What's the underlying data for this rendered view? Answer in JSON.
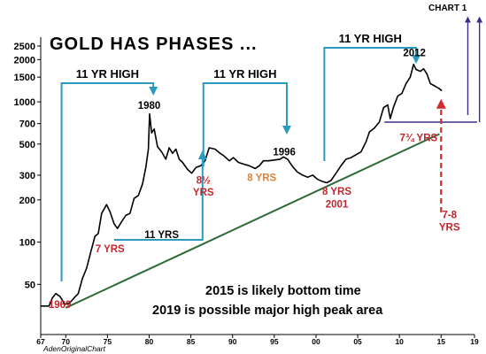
{
  "chart_label": "CHART 1",
  "source_label": "AdenOriginalChart",
  "chart_data": {
    "type": "line",
    "title": "GOLD HAS PHASES ...",
    "xlabel": "",
    "ylabel": "",
    "y_scale": "log",
    "xlim": [
      1967,
      2019
    ],
    "ylim": [
      32,
      2500
    ],
    "x_tick_labels": [
      "67",
      "70",
      "75",
      "80",
      "85",
      "90",
      "95",
      "00",
      "05",
      "10",
      "15",
      "19"
    ],
    "x_tick_years": [
      1967,
      1970,
      1975,
      1980,
      1985,
      1990,
      1995,
      2000,
      2005,
      2010,
      2015,
      2019
    ],
    "y_ticks": [
      50,
      100,
      200,
      300,
      500,
      700,
      1000,
      1500,
      2000,
      2500
    ],
    "grid": false,
    "colors": {
      "price": "#000000",
      "trend": "#2e6b38",
      "phase": "#2a9bbf",
      "label_red": "#c0272d",
      "label_orange": "#e0823a",
      "projection": "#d12b2b",
      "upper_arrow": "#3a2e8c"
    },
    "series": [
      {
        "x": [
          1967.0,
          1968.0,
          1968.4,
          1968.8,
          1969.3,
          1969.9,
          1970.5,
          1971.0,
          1971.5,
          1972.0,
          1972.5,
          1973.0,
          1973.5,
          1973.9,
          1974.3,
          1974.9,
          1975.3,
          1975.8,
          1976.2,
          1976.7,
          1977.2,
          1977.7,
          1978.2,
          1978.7,
          1979.2,
          1979.6,
          1979.9,
          1980.05,
          1980.3,
          1980.6,
          1981.0,
          1981.5,
          1982.0,
          1982.4,
          1982.8,
          1983.2,
          1983.6,
          1984.0,
          1984.6,
          1985.1,
          1985.6,
          1986.2,
          1986.7,
          1987.2,
          1987.9,
          1988.5,
          1989.0,
          1989.6,
          1990.1,
          1990.7,
          1991.3,
          1992.0,
          1992.7,
          1993.2,
          1993.7,
          1994.3,
          1995.0,
          1995.7,
          1996.1,
          1996.6,
          1997.2,
          1997.8,
          1998.4,
          1999.0,
          1999.6,
          2000.2,
          2000.8,
          2001.3,
          2001.8,
          2002.4,
          2003.0,
          2003.6,
          2004.2,
          2004.8,
          2005.4,
          2006.0,
          2006.4,
          2007.0,
          2007.6,
          2008.1,
          2008.6,
          2008.9,
          2009.3,
          2009.8,
          2010.3,
          2010.8,
          2011.3,
          2011.7,
          2012.0,
          2012.5,
          2012.9,
          2013.3,
          2013.7,
          2014.2,
          2014.7,
          2015.1
        ],
        "y": [
          35,
          35,
          40,
          43,
          41,
          36,
          37,
          40,
          43,
          55,
          65,
          85,
          110,
          115,
          160,
          185,
          165,
          135,
          125,
          140,
          155,
          160,
          205,
          215,
          260,
          340,
          460,
          820,
          600,
          640,
          480,
          440,
          390,
          470,
          430,
          460,
          390,
          370,
          330,
          310,
          340,
          350,
          380,
          470,
          460,
          430,
          410,
          380,
          400,
          370,
          360,
          350,
          335,
          350,
          380,
          380,
          385,
          390,
          405,
          390,
          345,
          315,
          300,
          290,
          300,
          280,
          270,
          265,
          275,
          310,
          350,
          390,
          400,
          420,
          440,
          520,
          610,
          650,
          720,
          910,
          950,
          760,
          920,
          1100,
          1150,
          1350,
          1500,
          1850,
          1700,
          1650,
          1720,
          1580,
          1350,
          1300,
          1250,
          1200
        ]
      }
    ],
    "trend_line": {
      "x": [
        1970,
        2014.8
      ],
      "y": [
        34,
        590
      ]
    },
    "phases": [
      {
        "label": "11 YR HIGH",
        "from_year": 1969.5,
        "to_year": 1980.5,
        "arrow_year": 1980.5
      },
      {
        "label": "11 YR HIGH",
        "from_year": 1986.5,
        "to_year": 1996.5,
        "arrow_year": 1996.5
      },
      {
        "label": "11 YR HIGH",
        "from_year": 2001.0,
        "to_year": 2012.0,
        "arrow_year": 2012.0
      }
    ],
    "annotations": [
      {
        "text": "1969",
        "x": 1969.3,
        "y": 34,
        "color": "label_red"
      },
      {
        "text": "7 YRS",
        "x": 1975.3,
        "y": 85,
        "color": "label_red"
      },
      {
        "text": "1980",
        "x": 1980.0,
        "y": 890,
        "color": "black"
      },
      {
        "text": "11 YRS",
        "x": 1981.5,
        "y": 107,
        "color": "black"
      },
      {
        "text": "8½",
        "x": 1986.5,
        "y": 262,
        "color": "label_red"
      },
      {
        "text": "YRS",
        "x": 1986.5,
        "y": 215,
        "color": "label_red"
      },
      {
        "text": "8 YRS",
        "x": 1993.5,
        "y": 272,
        "color": "label_orange"
      },
      {
        "text": "1996",
        "x": 1996.2,
        "y": 415,
        "color": "black"
      },
      {
        "text": "8 YRS",
        "x": 2002.5,
        "y": 218,
        "color": "label_red"
      },
      {
        "text": "2001",
        "x": 2002.5,
        "y": 177,
        "color": "label_red"
      },
      {
        "text": "2012",
        "x": 2011.8,
        "y": 2120,
        "color": "black"
      },
      {
        "text": "7¾ YRS",
        "x": 2012.3,
        "y": 525,
        "color": "label_red"
      },
      {
        "text": "7-8",
        "x": 2016.0,
        "y": 148,
        "color": "label_red"
      },
      {
        "text": "YRS",
        "x": 2016.0,
        "y": 121,
        "color": "label_red"
      }
    ],
    "notes": [
      "2015 is likely bottom time",
      "2019 is possible major high peak area"
    ]
  }
}
